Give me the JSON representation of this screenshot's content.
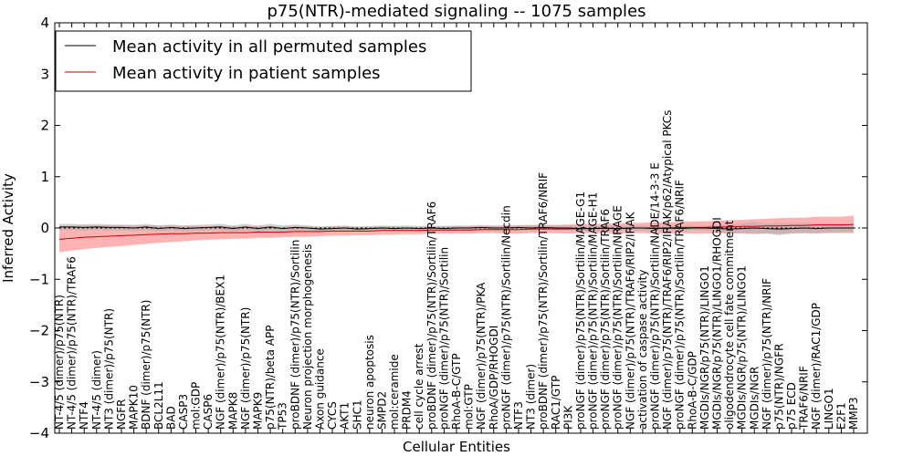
{
  "chart_data": {
    "type": "line",
    "title": "p75(NTR)-mediated signaling -- 1075 samples",
    "xlabel": "Cellular Entities",
    "ylabel": "Inferred Activity",
    "ylim": [
      -4,
      4
    ],
    "yticks": [
      "4",
      "3",
      "2",
      "1",
      "0",
      "−1",
      "−2",
      "−3",
      "−4"
    ],
    "yticks_values": [
      4,
      3,
      2,
      1,
      0,
      -1,
      -2,
      -3,
      -4
    ],
    "legend": {
      "placement": "top-left",
      "entries": [
        {
          "label": "Mean activity in all permuted samples",
          "color": "#000000"
        },
        {
          "label": "Mean activity in patient samples",
          "color": "#cc0000"
        }
      ]
    },
    "colors": {
      "permuted_line": "#000000",
      "permuted_band": "#b0b0b0",
      "patient_line": "#cc0000",
      "patient_band": "#ff7f7f"
    },
    "categories": [
      "NT-4/5 (dimer)/p75(NTR)",
      "NT-4/5 (dimer)/p75(NTR)/TRAF6",
      "NTF4",
      "NT-4/5 (dimer)",
      "NT3 (dimer)/p75(NTR)",
      "NGFR",
      "MAPK10",
      "BDNF (dimer)/p75(NTR)",
      "BCL2L11",
      "BAD",
      "CASP3",
      "mol:GDP",
      "CASP6",
      "NGF (dimer)/p75(NTR)/BEX1",
      "MAPK8",
      "NGF (dimer)/p75(NTR)",
      "MAPK9",
      "p75(NTR)/beta APP",
      "TP53",
      "proBDNF (dimer)/p75(NTR)/Sortilin",
      "Neuron projection morphogenesis",
      "Axon guidance",
      "CYCS",
      "AKT1",
      "SHC1",
      "neuron apoptosis",
      "SMPD2",
      "mol:ceramide",
      "PRDM4",
      "cell cycle arrest",
      "proBDNF (dimer)/p75(NTR)/Sortilin/TRAF6",
      "proNGF (dimer)/p75(NTR)/Sortilin",
      "RhoA-B-C/GTP",
      "mol:GTP",
      "NGF (dimer)/p75(NTR)/PKA",
      "RhoA/GDP/RHOGDI",
      "proNGF (dimer)/p75(NTR)/Sortilin/Necdin",
      "NTF3",
      "NT3 (dimer)",
      "proBDNF (dimer)/p75(NTR)/Sortilin/TRAF6/NRIF",
      "RAC1/GTP",
      "PI3K",
      "proNGF (dimer)/p75(NTR)/Sortilin/MAGE-G1",
      "proNGF (dimer)/p75(NTR)/Sortilin/MAGE-H1",
      "proNGF (dimer)/p75(NTR)/Sortilin/TRAF6",
      "proNGF (dimer)/p75(NTR)/Sortilin/NRAGE",
      "NGF (dimer)/p75(NTR)/TRAF6/RIP2/IRAK",
      "activation of caspase activity",
      "proNGF (dimer)/p75(NTR)/Sortilin/NADE/14-3-3 E",
      "NGF (dimer)/p75(NTR)/TRAF6/RIP2/IRAK/p62/Atypical PKCs",
      "proNGF (dimer)/p75(NTR)/Sortilin/TRAF6/NRIF",
      "RhoA-B-C/GDP",
      "MGDIs/NGR/p75(NTR)/LINGO1",
      "MGDIs/NGR/p75(NTR)/LINGO1/RHOGDI",
      "oligodendrocyte cell fate commitment",
      "MGDIs/NGR/p75(NTR)/LINGO1",
      "MGDIs/NGR",
      "NGF (dimer)/p75(NTR)/NRIF",
      "p75(NTR)/NGFR",
      "p75 ECD",
      "TRAF6/NRIF",
      "NGF (dimer)/RAC1/GDP",
      "LINGO1",
      "E2F1",
      "MMP3"
    ],
    "permuted_mean": [
      0.02,
      0.02,
      0.01,
      0.02,
      0.01,
      0.01,
      0.0,
      0.02,
      -0.01,
      0.01,
      -0.01,
      0.0,
      0.01,
      0.02,
      -0.01,
      0.02,
      -0.01,
      0.02,
      -0.01,
      0.01,
      0.0,
      -0.02,
      -0.01,
      0.0,
      -0.02,
      -0.01,
      0.0,
      -0.01,
      0.0,
      -0.01,
      0.0,
      -0.01,
      0.0,
      0.0,
      0.01,
      0.0,
      0.0,
      0.01,
      0.0,
      0.01,
      0.0,
      0.0,
      -0.01,
      -0.01,
      0.0,
      -0.01,
      0.0,
      0.0,
      -0.01,
      0.0,
      -0.01,
      0.0,
      0.0,
      -0.01,
      -0.02,
      -0.01,
      0.0,
      -0.01,
      -0.02,
      -0.01,
      0.0,
      -0.01,
      0.0,
      0.0,
      0.0
    ],
    "permuted_band": [
      0.06,
      0.06,
      0.06,
      0.06,
      0.06,
      0.06,
      0.06,
      0.06,
      0.06,
      0.06,
      0.06,
      0.06,
      0.06,
      0.06,
      0.06,
      0.06,
      0.06,
      0.06,
      0.06,
      0.06,
      0.05,
      0.05,
      0.05,
      0.05,
      0.05,
      0.05,
      0.05,
      0.05,
      0.05,
      0.05,
      0.05,
      0.05,
      0.05,
      0.05,
      0.05,
      0.05,
      0.05,
      0.05,
      0.05,
      0.05,
      0.05,
      0.05,
      0.05,
      0.05,
      0.05,
      0.05,
      0.05,
      0.05,
      0.05,
      0.05,
      0.05,
      0.05,
      0.05,
      0.06,
      0.08,
      0.1,
      0.12,
      0.1,
      0.12,
      0.1,
      0.1,
      0.1,
      0.09,
      0.08,
      0.08
    ],
    "patient_mean": [
      -0.22,
      -0.2,
      -0.18,
      -0.17,
      -0.16,
      -0.15,
      -0.14,
      -0.13,
      -0.12,
      -0.11,
      -0.11,
      -0.1,
      -0.1,
      -0.09,
      -0.09,
      -0.09,
      -0.08,
      -0.08,
      -0.08,
      -0.07,
      -0.07,
      -0.07,
      -0.06,
      -0.06,
      -0.06,
      -0.06,
      -0.05,
      -0.05,
      -0.05,
      -0.05,
      -0.04,
      -0.04,
      -0.04,
      -0.04,
      -0.03,
      -0.03,
      -0.03,
      -0.03,
      -0.02,
      -0.02,
      -0.02,
      -0.02,
      -0.01,
      -0.01,
      -0.01,
      -0.01,
      0.0,
      0.0,
      0.0,
      0.0,
      0.01,
      0.01,
      0.01,
      0.02,
      0.02,
      0.03,
      0.03,
      0.04,
      0.04,
      0.05,
      0.05,
      0.06,
      0.06,
      0.06,
      0.07
    ],
    "patient_band": [
      0.25,
      0.24,
      0.23,
      0.22,
      0.21,
      0.2,
      0.19,
      0.18,
      0.17,
      0.16,
      0.15,
      0.14,
      0.13,
      0.13,
      0.12,
      0.12,
      0.11,
      0.11,
      0.1,
      0.1,
      0.1,
      0.09,
      0.09,
      0.09,
      0.08,
      0.08,
      0.08,
      0.08,
      0.07,
      0.07,
      0.07,
      0.07,
      0.07,
      0.07,
      0.07,
      0.07,
      0.08,
      0.08,
      0.08,
      0.08,
      0.08,
      0.09,
      0.09,
      0.09,
      0.09,
      0.1,
      0.1,
      0.1,
      0.11,
      0.11,
      0.11,
      0.12,
      0.12,
      0.12,
      0.13,
      0.13,
      0.14,
      0.14,
      0.15,
      0.15,
      0.15,
      0.16,
      0.16,
      0.16,
      0.17
    ]
  }
}
